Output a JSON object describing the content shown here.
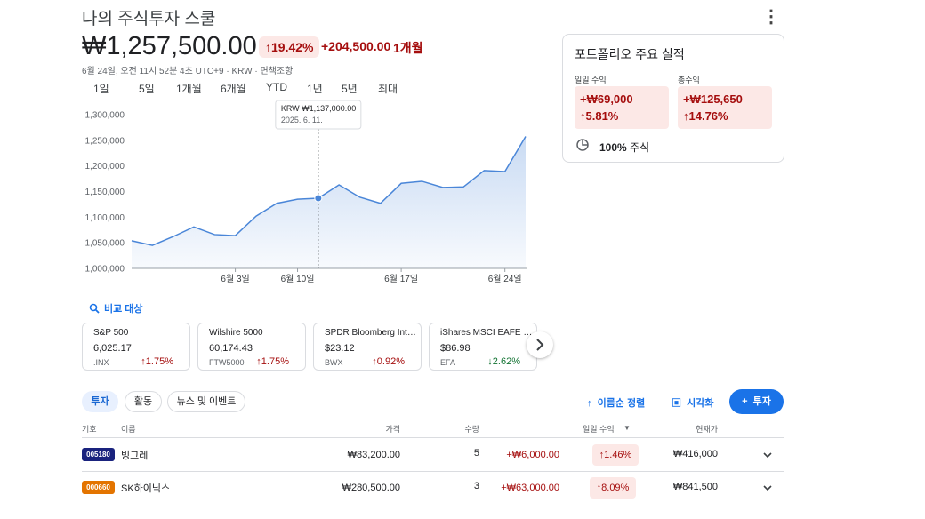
{
  "header": {
    "title": "나의 주식투자 스쿨",
    "price": "₩1,257,500.00",
    "change_percent": "19.42%",
    "change_amount": "+204,500.00",
    "change_period": "1개월",
    "timestamp": "6월 24일, 오전 11시 52분 4초 UTC+9 · KRW · 면책조항"
  },
  "ranges": [
    "1일",
    "5일",
    "1개월",
    "6개월",
    "YTD",
    "1년",
    "5년",
    "최대"
  ],
  "chart_data": {
    "type": "line",
    "x": [
      null,
      null,
      null,
      null,
      null,
      "6월 3일",
      null,
      null,
      "6월 10일",
      null,
      null,
      null,
      null,
      "6월 17일",
      null,
      null,
      null,
      null,
      "6월 24일",
      null
    ],
    "series": [
      {
        "color": "#4a86d8",
        "values": [
          1054000,
          1045000,
          1062000,
          1081000,
          1066000,
          1064000,
          1102000,
          1127000,
          1135000,
          1137000,
          1163000,
          1139000,
          1127000,
          1166000,
          1170000,
          1158000,
          1159000,
          1191000,
          1189000,
          1257500
        ]
      }
    ],
    "ylim": [
      1000000,
      1300000
    ],
    "yticks": [
      {
        "value": 1000000,
        "label": "1,000,000"
      },
      {
        "value": 1050000,
        "label": "1,050,000"
      },
      {
        "value": 1100000,
        "label": "1,100,000"
      },
      {
        "value": 1150000,
        "label": "1,150,000"
      },
      {
        "value": 1200000,
        "label": "1,200,000"
      },
      {
        "value": 1250000,
        "label": "1,250,000"
      },
      {
        "value": 1300000,
        "label": "1,300,000"
      }
    ],
    "tooltip": {
      "label": "KRW ₩1,137,000.00",
      "date": "2025. 6. 11."
    }
  },
  "performance": {
    "title": "포트폴리오 주요 실적",
    "daily": {
      "label": "일일 수익",
      "amount": "+₩69,000",
      "percent": "5.81%"
    },
    "total": {
      "label": "총수익",
      "amount": "+₩125,650",
      "percent": "14.76%"
    },
    "allocation": {
      "percent": "100%",
      "label": "주식"
    }
  },
  "compare": {
    "label": "비교 대상",
    "cards": [
      {
        "name": "S&P 500",
        "price": "6,025.17",
        "symbol": ".INX",
        "change": "1.75%"
      },
      {
        "name": "Wilshire 5000",
        "price": "60,174.43",
        "symbol": "FTW5000",
        "change": "1.75%"
      },
      {
        "name": "SPDR Bloomberg International Treasury Bond ETF",
        "price": "$23.12",
        "symbol": "BWX",
        "change": "0.92%"
      },
      {
        "name": "iShares MSCI EAFE ETF",
        "price": "$86.98",
        "symbol": "EFA",
        "change": "2.62%"
      }
    ]
  },
  "tabs": [
    "투자",
    "활동",
    "뉴스 및 이벤트"
  ],
  "actions": {
    "sort": "이름순 정렬",
    "visualize": "시각화",
    "invest": "투자"
  },
  "table": {
    "columns": [
      "기호",
      "이름",
      "가격",
      "수량",
      "일일 수익",
      "현재가"
    ],
    "rows": [
      [
        "005180",
        "빙그레",
        "₩83,200.00",
        "5",
        "+₩6,000.00",
        "1.46%",
        "₩416,000"
      ],
      [
        "000660",
        "SK하이닉스",
        "₩280,500.00",
        "3",
        "+₩63,000.00",
        "8.09%",
        "₩841,500"
      ]
    ]
  }
}
